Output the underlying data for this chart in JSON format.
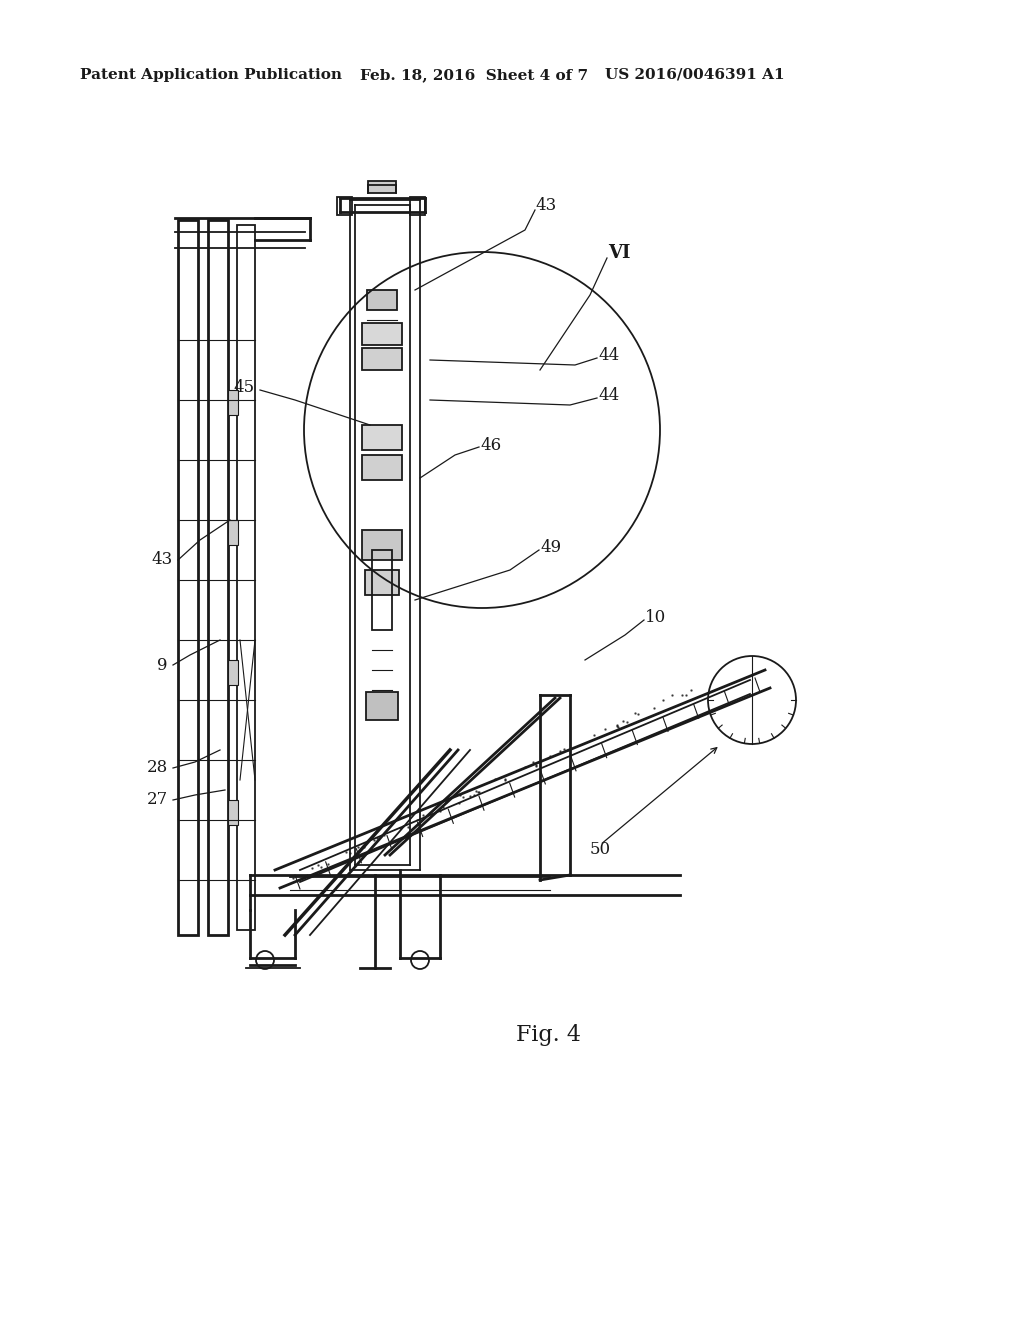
{
  "background_color": "#ffffff",
  "header_left": "Patent Application Publication",
  "header_center": "Feb. 18, 2016  Sheet 4 of 7",
  "header_right": "US 2016/0046391 A1",
  "fig_label": "Fig. 4",
  "header_fontsize": 11,
  "fig_fontsize": 16,
  "label_fontsize": 13,
  "annotation_fontsize": 12,
  "color": "#1a1a1a"
}
